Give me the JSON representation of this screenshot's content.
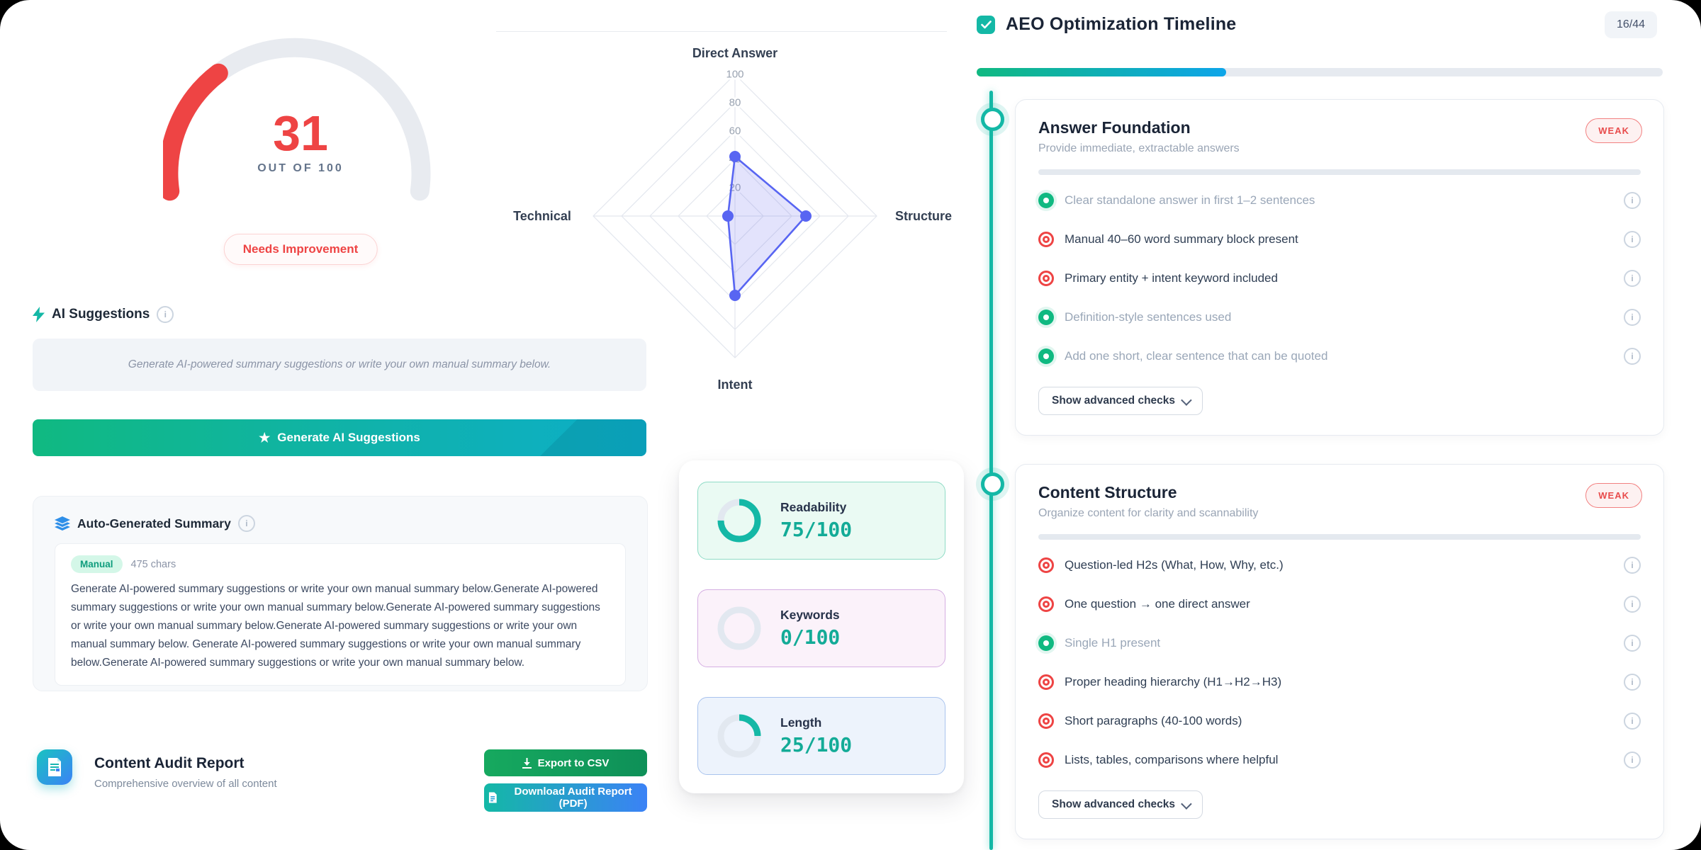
{
  "colors": {
    "teal": "#14b8a6",
    "green": "#10b981",
    "red": "#ee4444",
    "indigo": "#5865f2",
    "progress_from": "#10b981",
    "progress_to": "#0ea5e9"
  },
  "ai": {
    "title": "AI Suggestions",
    "placeholder": "Generate AI-powered summary suggestions or write your own manual summary below.",
    "generate_label": "Generate AI Suggestions"
  },
  "summary": {
    "title": "Auto-Generated Summary",
    "badge": "Manual",
    "chars": "475 chars",
    "text": "Generate AI-powered summary suggestions or write your own manual summary below.Generate AI-powered summary suggestions or write your own manual summary below.Generate AI-powered summary suggestions or write your own manual summary below.Generate AI-powered summary suggestions or write your own manual summary below. Generate AI-powered summary suggestions or write your own manual summary below.Generate AI-powered summary suggestions or write your own manual summary below."
  },
  "report": {
    "title": "Content Audit Report",
    "subtitle": "Comprehensive overview of all content",
    "export_csv_label": "Export to CSV",
    "download_pdf_label": "Download Audit Report (PDF)"
  },
  "chart_data": [
    {
      "type": "radar",
      "categories": [
        "Direct Answer",
        "Structure",
        "Intent",
        "Technical"
      ],
      "values": [
        42,
        50,
        56,
        5
      ],
      "max": 100,
      "rings": [
        20,
        40,
        60,
        80,
        100
      ],
      "grid": "on",
      "line_color": "#5865f2",
      "fill_color": "rgba(99,102,241,0.18)"
    },
    {
      "type": "donut-gauges",
      "ring_color": "#14b8a6",
      "track_color": "#e2e8f0",
      "metrics": [
        {
          "label": "Readability",
          "value": 75,
          "max": 100,
          "display": "75/100",
          "card_bg": "#eafaf3",
          "card_border": "#8fdcc6"
        },
        {
          "label": "Keywords",
          "value": 0,
          "max": 100,
          "display": "0/100",
          "card_bg": "#fbf2fa",
          "card_border": "#d5aee2"
        },
        {
          "label": "Length",
          "value": 25,
          "max": 100,
          "display": "25/100",
          "card_bg": "#edf3fc",
          "card_border": "#a9c3ee"
        }
      ]
    },
    {
      "type": "gauge",
      "value": 31,
      "max": 100,
      "label": "OUT OF 100",
      "status": "Needs Improvement",
      "color": "#ee4444",
      "track": "#e8ebf0"
    }
  ],
  "timeline": {
    "title": "AEO Optimization Timeline",
    "badge": "16/44",
    "completed": 16,
    "total": 44,
    "cards": [
      {
        "title": "Answer Foundation",
        "subtitle": "Provide immediate, extractable answers",
        "status": "WEAK",
        "advanced_label": "Show advanced checks",
        "items": [
          {
            "label": "Clear standalone answer in first 1–2 sentences",
            "state": "pass"
          },
          {
            "label": "Manual 40–60 word summary block present",
            "state": "fail"
          },
          {
            "label": "Primary entity + intent keyword included",
            "state": "fail"
          },
          {
            "label": "Definition-style sentences used",
            "state": "pass"
          },
          {
            "label": "Add one short, clear sentence that can be quoted",
            "state": "pass"
          }
        ]
      },
      {
        "title": "Content Structure",
        "subtitle": "Organize content for clarity and scannability",
        "status": "WEAK",
        "advanced_label": "Show advanced checks",
        "items": [
          {
            "label": "Question-led H2s (What, How, Why, etc.)",
            "state": "fail"
          },
          {
            "label": "One question → one direct answer",
            "state": "fail"
          },
          {
            "label": "Single H1 present",
            "state": "pass"
          },
          {
            "label": "Proper heading hierarchy (H1→H2→H3)",
            "state": "fail"
          },
          {
            "label": "Short paragraphs (40-100 words)",
            "state": "fail"
          },
          {
            "label": "Lists, tables, comparisons where helpful",
            "state": "fail"
          }
        ]
      }
    ]
  }
}
